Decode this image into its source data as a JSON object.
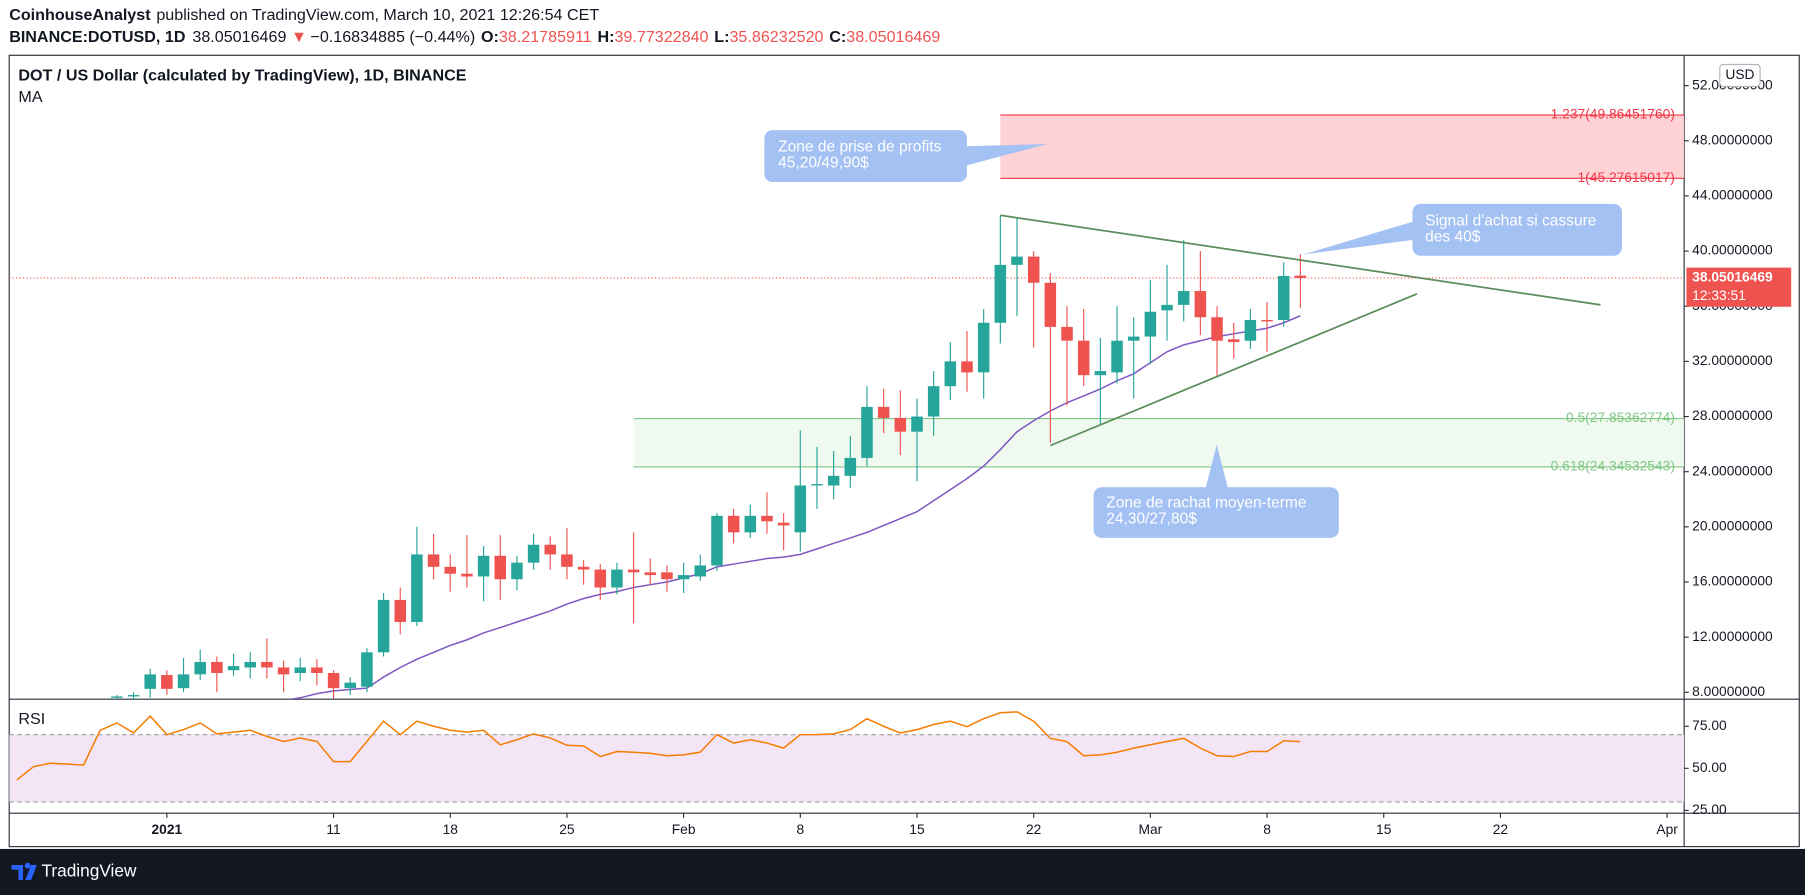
{
  "header": {
    "author": "CoinhouseAnalyst",
    "published": "published on TradingView.com, March 10, 2021 12:26:54 CET",
    "symbol": "BINANCE:DOTUSD, 1D",
    "price": "38.05016469",
    "arrow": "▼",
    "change": "−0.16834885 (−0.44%)",
    "ohlc": [
      {
        "label": "O:",
        "value": "38.21785911"
      },
      {
        "label": "H:",
        "value": "39.77322840"
      },
      {
        "label": "L:",
        "value": "35.86232520"
      },
      {
        "label": "C:",
        "value": "38.05016469"
      }
    ]
  },
  "footer": {
    "brand": "TradingView"
  },
  "chart_data": {
    "type": "candlestick",
    "title": "DOT / US Dollar (calculated by TradingView), 1D, BINANCE",
    "y_axis_label": "USD",
    "x": [
      "2020-12-23",
      "2020-12-24",
      "2020-12-25",
      "2020-12-26",
      "2020-12-27",
      "2020-12-28",
      "2020-12-29",
      "2020-12-30",
      "2020-12-31",
      "2021-01-01",
      "2021-01-02",
      "2021-01-03",
      "2021-01-04",
      "2021-01-05",
      "2021-01-06",
      "2021-01-07",
      "2021-01-08",
      "2021-01-09",
      "2021-01-10",
      "2021-01-11",
      "2021-01-12",
      "2021-01-13",
      "2021-01-14",
      "2021-01-15",
      "2021-01-16",
      "2021-01-17",
      "2021-01-18",
      "2021-01-19",
      "2021-01-20",
      "2021-01-21",
      "2021-01-22",
      "2021-01-23",
      "2021-01-24",
      "2021-01-25",
      "2021-01-26",
      "2021-01-27",
      "2021-01-28",
      "2021-01-29",
      "2021-01-30",
      "2021-01-31",
      "2021-02-01",
      "2021-02-02",
      "2021-02-03",
      "2021-02-04",
      "2021-02-05",
      "2021-02-06",
      "2021-02-07",
      "2021-02-08",
      "2021-02-09",
      "2021-02-10",
      "2021-02-11",
      "2021-02-12",
      "2021-02-13",
      "2021-02-14",
      "2021-02-15",
      "2021-02-16",
      "2021-02-17",
      "2021-02-18",
      "2021-02-19",
      "2021-02-20",
      "2021-02-21",
      "2021-02-22",
      "2021-02-23",
      "2021-02-24",
      "2021-02-25",
      "2021-02-26",
      "2021-02-27",
      "2021-02-28",
      "2021-03-01",
      "2021-03-02",
      "2021-03-03",
      "2021-03-04",
      "2021-03-05",
      "2021-03-06",
      "2021-03-07",
      "2021-03-08",
      "2021-03-09",
      "2021-03-10"
    ],
    "open": [
      null,
      null,
      null,
      null,
      null,
      null,
      7.6,
      7.7,
      8.25,
      9.25,
      8.3,
      9.3,
      10.2,
      9.6,
      9.8,
      10.2,
      9.8,
      9.4,
      9.8,
      9.4,
      8.3,
      8.4,
      10.9,
      14.7,
      13.1,
      18.0,
      17.1,
      16.6,
      16.4,
      17.9,
      16.2,
      17.4,
      18.7,
      18.0,
      17.1,
      16.9,
      15.6,
      16.9,
      16.7,
      16.7,
      16.2,
      16.4,
      17.2,
      20.8,
      19.6,
      20.8,
      20.3,
      19.6,
      23.0,
      23.0,
      23.7,
      25.0,
      28.7,
      27.9,
      26.9,
      28.0,
      30.2,
      32.0,
      31.2,
      34.8,
      39.0,
      39.6,
      37.7,
      34.5,
      33.5,
      31.0,
      31.2,
      33.5,
      33.8,
      35.7,
      36.1,
      37.1,
      35.2,
      33.6,
      33.5,
      35.0,
      35.0,
      38.21785911
    ],
    "high": [
      null,
      null,
      null,
      null,
      null,
      null,
      7.8,
      8.0,
      9.7,
      9.6,
      10.5,
      11.1,
      10.6,
      10.8,
      10.9,
      11.9,
      10.3,
      10.5,
      10.4,
      9.6,
      9.1,
      11.2,
      15.2,
      15.6,
      20.0,
      19.5,
      18.0,
      19.4,
      18.6,
      19.4,
      17.9,
      19.5,
      19.3,
      19.9,
      17.6,
      17.3,
      17.4,
      19.6,
      17.7,
      17.2,
      17.4,
      18.0,
      21.0,
      21.3,
      21.6,
      22.5,
      21.0,
      27.0,
      25.8,
      25.5,
      26.6,
      30.2,
      30.0,
      29.9,
      29.3,
      31.3,
      33.4,
      34.2,
      35.8,
      42.6,
      42.4,
      40.0,
      38.4,
      36.0,
      35.8,
      33.7,
      36.0,
      35.2,
      37.9,
      39.0,
      40.8,
      40.0,
      36.0,
      34.8,
      35.8,
      36.3,
      39.2,
      39.7732284
    ],
    "low": [
      null,
      null,
      null,
      null,
      null,
      null,
      7.4,
      7.5,
      7.6,
      7.8,
      8.0,
      8.9,
      8.0,
      9.2,
      9.0,
      9.0,
      8.0,
      8.8,
      8.5,
      7.5,
      7.8,
      8.0,
      10.6,
      12.2,
      12.8,
      16.2,
      15.3,
      15.6,
      14.6,
      14.7,
      15.4,
      16.9,
      16.9,
      16.2,
      15.8,
      14.7,
      15.1,
      13.0,
      15.8,
      15.3,
      15.2,
      16.1,
      16.8,
      18.8,
      19.2,
      19.5,
      18.3,
      18.2,
      21.3,
      22.0,
      22.8,
      24.4,
      26.8,
      25.2,
      23.3,
      26.6,
      29.2,
      29.8,
      29.3,
      33.3,
      35.3,
      33.0,
      26.1,
      28.8,
      30.2,
      27.4,
      30.4,
      29.3,
      31.8,
      33.5,
      34.9,
      33.9,
      30.9,
      32.2,
      32.9,
      32.7,
      34.5,
      35.8623252
    ],
    "close": [
      null,
      null,
      null,
      null,
      null,
      null,
      7.7,
      7.8,
      9.3,
      8.25,
      9.3,
      10.2,
      9.4,
      9.9,
      10.2,
      9.8,
      9.3,
      9.8,
      9.4,
      8.3,
      8.7,
      10.9,
      14.7,
      13.1,
      18.0,
      17.1,
      16.6,
      16.4,
      17.9,
      16.2,
      17.4,
      18.7,
      18.0,
      17.1,
      16.9,
      15.6,
      16.9,
      16.7,
      16.5,
      16.2,
      16.5,
      17.2,
      20.8,
      19.6,
      20.8,
      20.4,
      20.1,
      23.0,
      23.1,
      23.7,
      25.0,
      28.7,
      27.9,
      26.9,
      28.0,
      30.2,
      32.0,
      31.2,
      34.8,
      39.0,
      39.6,
      37.7,
      34.5,
      33.5,
      31.0,
      31.3,
      33.5,
      33.8,
      35.6,
      36.1,
      37.1,
      35.2,
      33.5,
      33.4,
      35.0,
      34.9,
      38.2,
      38.05016469
    ],
    "up_color": "#26a69a",
    "down_color": "#ef5350",
    "series": [
      {
        "name": "MA",
        "color": "#7e57c2",
        "values": [
          null,
          null,
          null,
          null,
          null,
          null,
          null,
          null,
          null,
          null,
          null,
          null,
          null,
          null,
          null,
          null,
          7.4,
          7.6,
          7.9,
          8.1,
          8.2,
          8.3,
          9.1,
          9.8,
          10.4,
          10.9,
          11.4,
          11.8,
          12.3,
          12.7,
          13.1,
          13.5,
          13.9,
          14.4,
          14.8,
          15.1,
          15.3,
          15.6,
          15.8,
          16.0,
          16.3,
          16.6,
          17.1,
          17.3,
          17.5,
          17.7,
          17.8,
          18.0,
          18.4,
          18.8,
          19.2,
          19.6,
          20.1,
          20.6,
          21.1,
          21.9,
          22.7,
          23.5,
          24.4,
          25.6,
          26.9,
          27.7,
          28.4,
          29.0,
          29.5,
          30.0,
          30.6,
          31.1,
          31.9,
          32.7,
          33.2,
          33.5,
          33.8,
          34.0,
          34.2,
          34.4,
          34.8,
          35.3
        ]
      }
    ],
    "xlim": [
      "2020-12-22T13:00Z",
      "2021-04-02T00:30Z"
    ],
    "xticks": [
      {
        "value": "2021-01-01",
        "label": "2021"
      },
      {
        "value": "2021-01-11",
        "label": "11"
      },
      {
        "value": "2021-01-18",
        "label": "18"
      },
      {
        "value": "2021-01-25",
        "label": "25"
      },
      {
        "value": "2021-02-01",
        "label": "Feb"
      },
      {
        "value": "2021-02-08",
        "label": "8"
      },
      {
        "value": "2021-02-15",
        "label": "15"
      },
      {
        "value": "2021-02-22",
        "label": "22"
      },
      {
        "value": "2021-03-01",
        "label": "Mar"
      },
      {
        "value": "2021-03-08",
        "label": "8"
      },
      {
        "value": "2021-03-15",
        "label": "15"
      },
      {
        "value": "2021-03-22",
        "label": "22"
      },
      {
        "value": "2021-04-01",
        "label": "Apr"
      }
    ],
    "ylim": [
      7.5,
      54.2
    ],
    "yticks": [
      {
        "value": 8,
        "label": "8.00000000"
      },
      {
        "value": 12,
        "label": "12.00000000"
      },
      {
        "value": 16,
        "label": "16.00000000"
      },
      {
        "value": 20,
        "label": "20.00000000"
      },
      {
        "value": 24,
        "label": "24.00000000"
      },
      {
        "value": 28,
        "label": "28.00000000"
      },
      {
        "value": 32,
        "label": "32.00000000"
      },
      {
        "value": 36,
        "label": "36.00000000"
      },
      {
        "value": 40,
        "label": "40.00000000"
      },
      {
        "value": 44,
        "label": "44.00000000"
      },
      {
        "value": 48,
        "label": "48.00000000"
      },
      {
        "value": 52,
        "label": "52.00000000"
      }
    ],
    "last_price": {
      "value": 38.05016469,
      "label": "38.05016469",
      "countdown": "12:33:51",
      "color": "#ef5350"
    },
    "zones": [
      {
        "top": 49.8645176,
        "bottom": 45.27615017,
        "top_label": "1.237(49.86451760)",
        "bottom_label": "1(45.27615017)",
        "start": "2021-02-20",
        "color": "#f23645",
        "fill": "#ffcdd2"
      },
      {
        "top": 27.85362774,
        "bottom": 24.34532543,
        "top_label": "0.5(27.85362774)",
        "bottom_label": "0.618(24.34532543)",
        "start": "2021-01-29",
        "color": "#81c784",
        "fill": "#eef8ee"
      }
    ],
    "trendlines": [
      {
        "x": [
          "2021-02-20",
          "2021-03-28"
        ],
        "values": [
          42.6,
          36.1
        ],
        "color": "#5b8c5a"
      },
      {
        "x": [
          "2021-02-23",
          "2021-03-17"
        ],
        "values": [
          25.9,
          36.9
        ],
        "color": "#5b8c5a"
      }
    ],
    "annotations": [
      [
        "Zone de prise de profits",
        "45,20/49,90$"
      ],
      [
        "Signal d'achat si cassure",
        "des 40$"
      ],
      [
        "Zone de rachat moyen-terme",
        "24,30/27,80$"
      ]
    ],
    "indicator": {
      "name": "RSI",
      "color": "#f57c00",
      "values": [
        43,
        51,
        53,
        52.5,
        52,
        72.6,
        77,
        71,
        81,
        70,
        73,
        77,
        70.5,
        71.5,
        72.6,
        69,
        66,
        68,
        66,
        54,
        54,
        66,
        78,
        70,
        78,
        75,
        72.6,
        71.5,
        72.6,
        64,
        67,
        70.5,
        68,
        63.7,
        63.3,
        57,
        60,
        59.5,
        59,
        57.5,
        58,
        59.6,
        70,
        65,
        67,
        65,
        62,
        70,
        70,
        70.5,
        73,
        79.5,
        75,
        71,
        73,
        76,
        78,
        74.7,
        79.5,
        83,
        83.6,
        78,
        67.8,
        65.8,
        57.5,
        58,
        59.5,
        62,
        64,
        66,
        67.8,
        62,
        57.5,
        57,
        60,
        60,
        66.4,
        65.8
      ],
      "ylim": [
        23.3,
        91.1
      ],
      "yticks": [
        {
          "value": 75,
          "label": "75.00"
        },
        {
          "value": 50,
          "label": "50.00"
        },
        {
          "value": 25,
          "label": "25.00"
        }
      ],
      "band": [
        30,
        70
      ],
      "band_color": "#f3e5f5",
      "band_line_color": "#9e9e9e"
    }
  }
}
